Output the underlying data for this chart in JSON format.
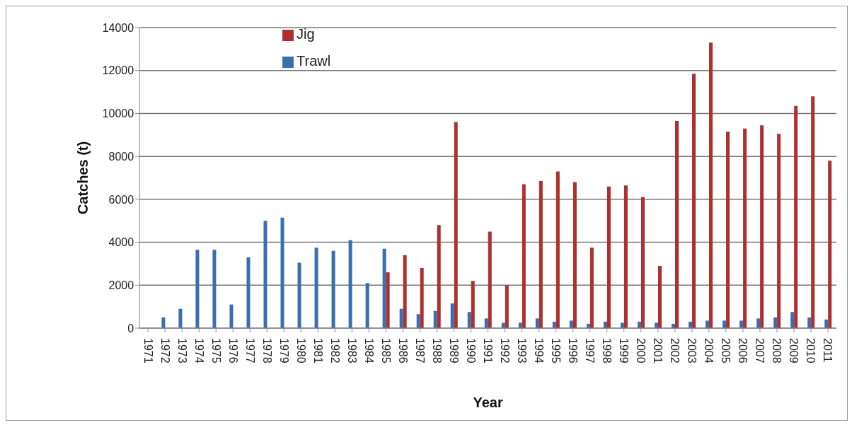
{
  "chart_data": {
    "type": "bar",
    "xlabel": "Year",
    "ylabel": "Catches (t)",
    "categories": [
      "1971",
      "1972",
      "1973",
      "1974",
      "1975",
      "1976",
      "1977",
      "1978",
      "1979",
      "1980",
      "1981",
      "1982",
      "1983",
      "1984",
      "1985",
      "1986",
      "1987",
      "1988",
      "1989",
      "1990",
      "1991",
      "1992",
      "1993",
      "1994",
      "1995",
      "1996",
      "1997",
      "1998",
      "1999",
      "2000",
      "2001",
      "2002",
      "2003",
      "2004",
      "2005",
      "2006",
      "2007",
      "2008",
      "2009",
      "2010",
      "2011"
    ],
    "series": [
      {
        "name": "Trawl",
        "color": "#3a6eae",
        "values": [
          0,
          500,
          900,
          3650,
          3650,
          1100,
          3300,
          5000,
          5150,
          3050,
          3750,
          3600,
          4100,
          2100,
          3700,
          900,
          650,
          800,
          1150,
          750,
          450,
          250,
          250,
          450,
          300,
          350,
          200,
          300,
          250,
          300,
          250,
          200,
          300,
          350,
          350,
          350,
          450,
          500,
          750,
          500,
          400
        ]
      },
      {
        "name": "Jig",
        "color": "#ae2f2f",
        "values": [
          0,
          0,
          0,
          0,
          0,
          0,
          0,
          0,
          0,
          0,
          0,
          0,
          0,
          0,
          2600,
          3400,
          2800,
          4800,
          9600,
          2200,
          4500,
          2000,
          6700,
          6850,
          7300,
          6800,
          3750,
          6600,
          6650,
          6100,
          2900,
          9650,
          11850,
          13300,
          9150,
          9300,
          9450,
          9050,
          10350,
          10800,
          7800
        ]
      }
    ],
    "ylim": [
      0,
      14000
    ],
    "yticks": [
      0,
      2000,
      4000,
      6000,
      8000,
      10000,
      12000,
      14000
    ],
    "grid": "y",
    "legend": "top left"
  }
}
